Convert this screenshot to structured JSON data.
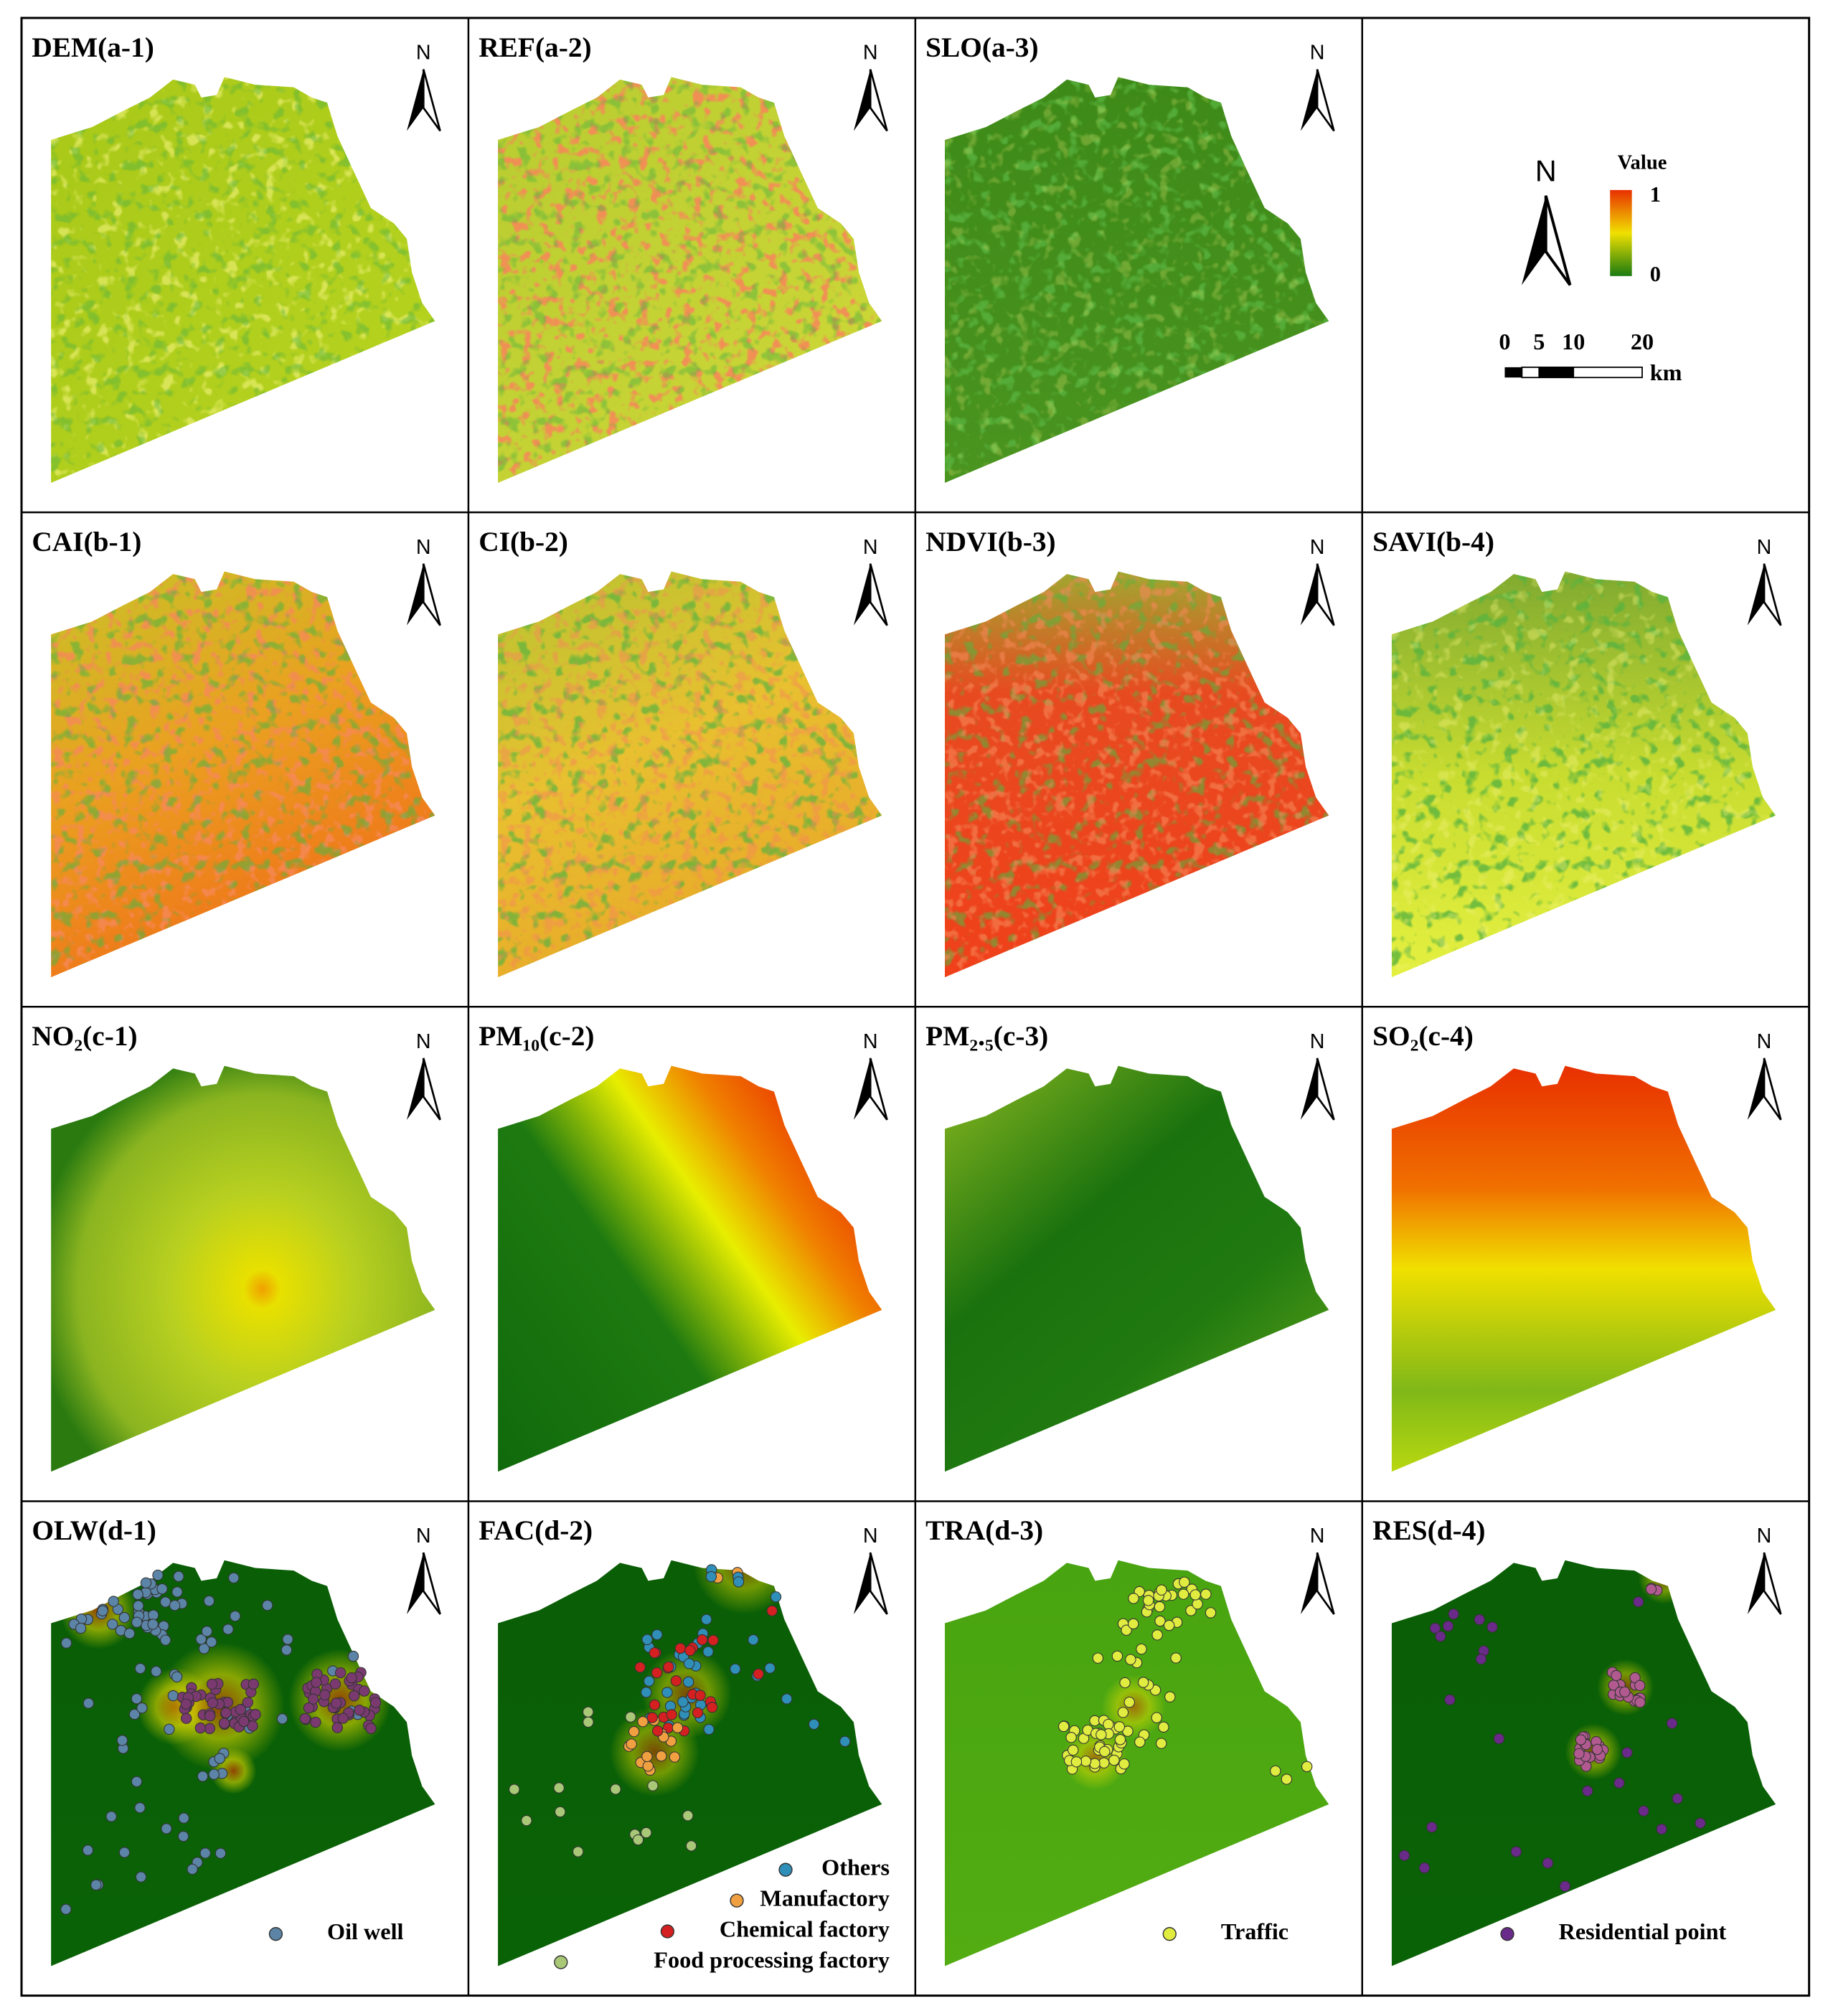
{
  "panels": [
    {
      "title": "DEM(a-1)",
      "north": "N",
      "style": "dem"
    },
    {
      "title": "REF(a-2)",
      "north": "N",
      "style": "ref"
    },
    {
      "title": "SLO(a-3)",
      "north": "N",
      "style": "slo"
    },
    {
      "title": "CAI(b-1)",
      "north": "N",
      "style": "cai"
    },
    {
      "title": "CI(b-2)",
      "north": "N",
      "style": "ci"
    },
    {
      "title": "NDVI(b-3)",
      "north": "N",
      "style": "ndvi"
    },
    {
      "title": "SAVI(b-4)",
      "north": "N",
      "style": "savi"
    },
    {
      "title": "NO₂(c-1)",
      "north": "N",
      "style": "no2"
    },
    {
      "title": "PM₁₀(c-2)",
      "north": "N",
      "style": "pm10"
    },
    {
      "title": "PM₂.₅(c-3)",
      "north": "N",
      "style": "pm25"
    },
    {
      "title": "SO₂(c-4)",
      "north": "N",
      "style": "so2"
    },
    {
      "title": "OLW(d-1)",
      "north": "N",
      "style": "olw",
      "legend": [
        {
          "label": "Oil well",
          "color": "#5b84a6"
        }
      ]
    },
    {
      "title": "FAC(d-2)",
      "north": "N",
      "style": "fac",
      "legend": [
        {
          "label": "Others",
          "color": "#2f8fb8"
        },
        {
          "label": "Manufactory",
          "color": "#f0a040"
        },
        {
          "label": "Chemical factory",
          "color": "#d42020"
        },
        {
          "label": "Food processing factory",
          "color": "#a8c878"
        }
      ]
    },
    {
      "title": "TRA(d-3)",
      "north": "N",
      "style": "tra",
      "legend": [
        {
          "label": "Traffic",
          "color": "#e0ec40"
        }
      ]
    },
    {
      "title": "RES(d-4)",
      "north": "N",
      "style": "res",
      "legend": [
        {
          "label": "Residential point",
          "color": "#6a2a8a"
        }
      ]
    }
  ],
  "legend_panel": {
    "north": "N",
    "value_title": "Value",
    "max": 1,
    "min": 0,
    "scale_ticks": [
      0,
      5,
      10,
      20
    ],
    "unit": "km"
  }
}
